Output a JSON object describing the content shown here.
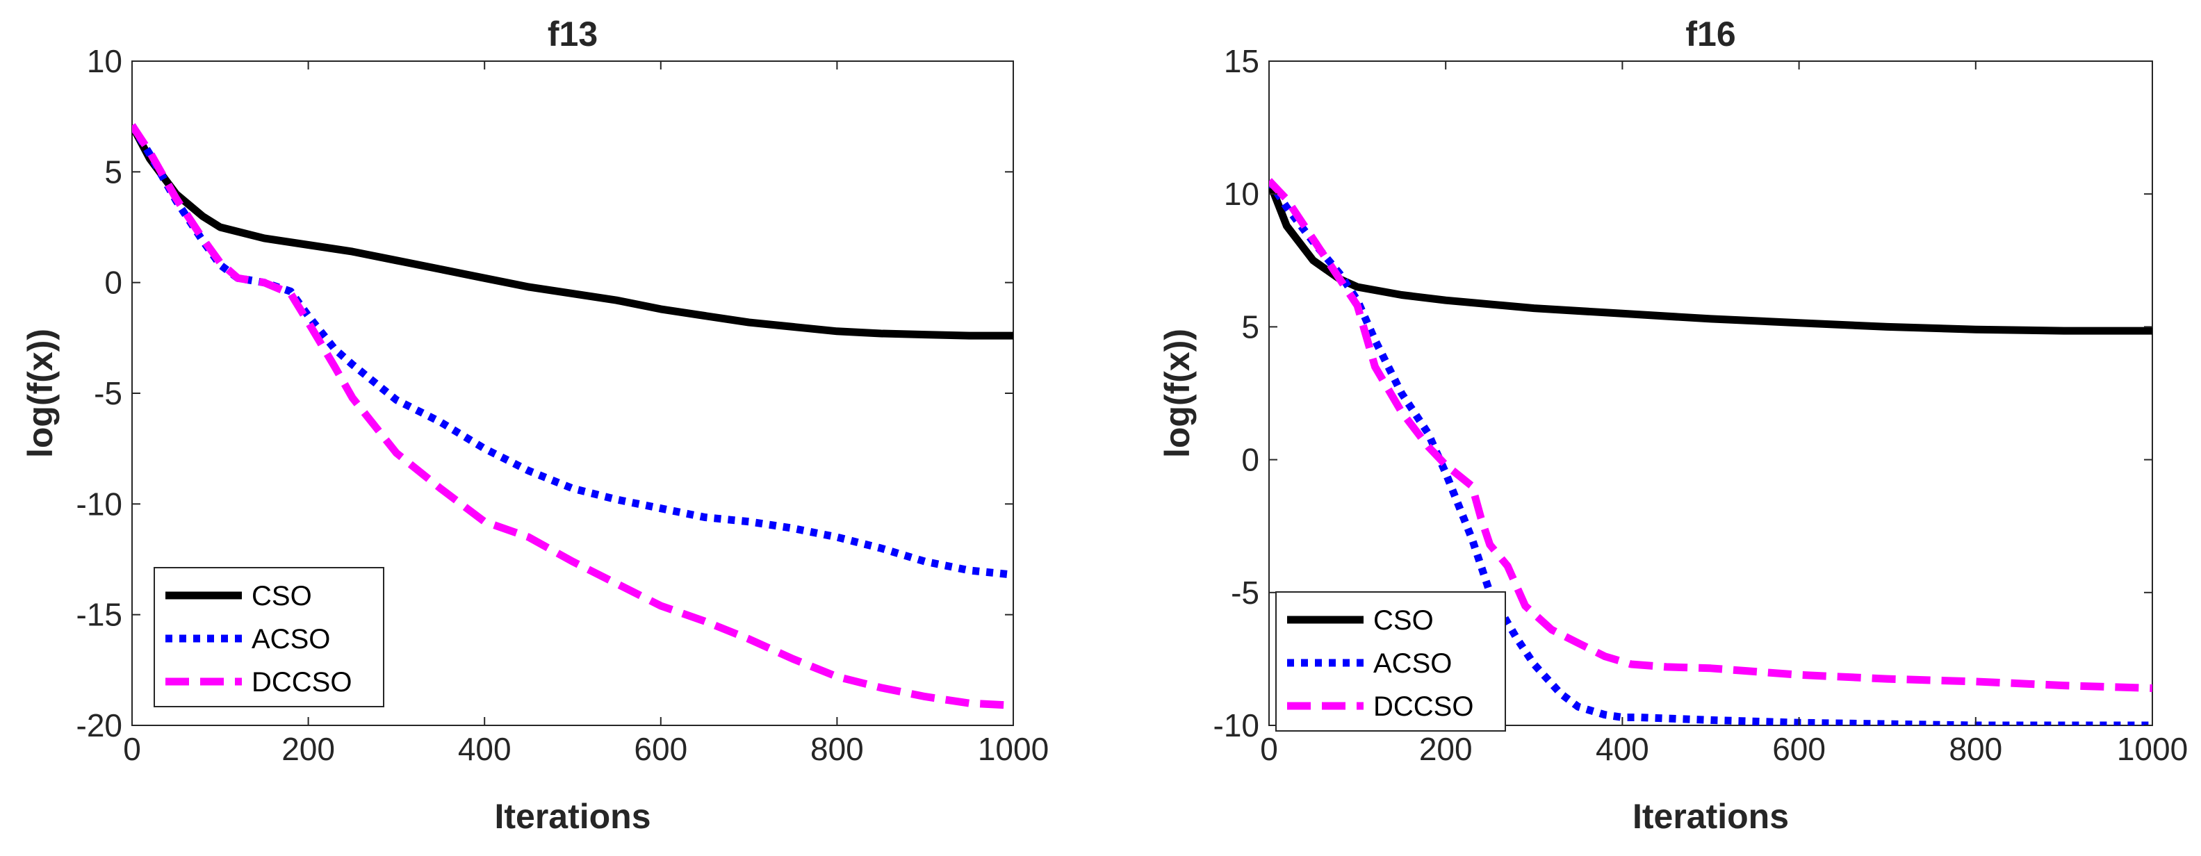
{
  "chart_data": [
    {
      "type": "line",
      "title": "f13",
      "xlabel": "Iterations",
      "ylabel": "log(f(x))",
      "xlim": [
        0,
        1000
      ],
      "ylim": [
        -20,
        10
      ],
      "xticks": [
        0,
        200,
        400,
        600,
        800,
        1000
      ],
      "yticks": [
        10,
        5,
        0,
        -5,
        -10,
        -15,
        -20
      ],
      "xtick_labels": [
        "0",
        "200",
        "400",
        "600",
        "800",
        "1000"
      ],
      "ytick_labels": [
        "10",
        "5",
        "0",
        "-5",
        "-10",
        "-15",
        "-20"
      ],
      "grid": false,
      "legend_position": "bottom-left",
      "series": [
        {
          "name": "CSO",
          "color": "#000000",
          "style": "solid",
          "x": [
            0,
            20,
            50,
            80,
            100,
            150,
            200,
            250,
            300,
            350,
            400,
            450,
            500,
            550,
            600,
            650,
            700,
            750,
            800,
            850,
            900,
            950,
            1000
          ],
          "y": [
            7.1,
            5.6,
            4.0,
            3.0,
            2.5,
            2.0,
            1.7,
            1.4,
            1.0,
            0.6,
            0.2,
            -0.2,
            -0.5,
            -0.8,
            -1.2,
            -1.5,
            -1.8,
            -2.0,
            -2.2,
            -2.3,
            -2.35,
            -2.4,
            -2.4
          ]
        },
        {
          "name": "ACSO",
          "color": "#0000ff",
          "style": "dotted",
          "x": [
            0,
            20,
            50,
            80,
            100,
            120,
            150,
            180,
            200,
            230,
            250,
            300,
            350,
            400,
            450,
            500,
            550,
            600,
            650,
            700,
            750,
            800,
            850,
            900,
            950,
            1000
          ],
          "y": [
            7.1,
            5.8,
            3.7,
            1.9,
            0.8,
            0.2,
            0.0,
            -0.4,
            -1.5,
            -3.0,
            -3.7,
            -5.3,
            -6.3,
            -7.5,
            -8.5,
            -9.3,
            -9.8,
            -10.2,
            -10.6,
            -10.8,
            -11.1,
            -11.5,
            -12.0,
            -12.6,
            -13.0,
            -13.2
          ]
        },
        {
          "name": "DCCSO",
          "color": "#ff00ff",
          "style": "dashed",
          "x": [
            0,
            20,
            50,
            80,
            100,
            120,
            150,
            180,
            200,
            230,
            250,
            300,
            350,
            400,
            450,
            500,
            550,
            600,
            650,
            700,
            750,
            800,
            850,
            900,
            950,
            1000
          ],
          "y": [
            7.1,
            5.9,
            3.8,
            2.0,
            0.9,
            0.2,
            0.0,
            -0.5,
            -1.8,
            -3.8,
            -5.2,
            -7.7,
            -9.3,
            -10.8,
            -11.5,
            -12.6,
            -13.6,
            -14.6,
            -15.3,
            -16.1,
            -17.0,
            -17.8,
            -18.3,
            -18.7,
            -19.0,
            -19.1
          ]
        }
      ],
      "legend": [
        "CSO",
        "ACSO",
        "DCCSO"
      ]
    },
    {
      "type": "line",
      "title": "f16",
      "xlabel": "Iterations",
      "ylabel": "log(f(x))",
      "xlim": [
        0,
        1000
      ],
      "ylim": [
        -10,
        15
      ],
      "xticks": [
        0,
        200,
        400,
        600,
        800,
        1000
      ],
      "yticks": [
        15,
        10,
        5,
        0,
        -5,
        -10
      ],
      "xtick_labels": [
        "0",
        "200",
        "400",
        "600",
        "800",
        "1000"
      ],
      "ytick_labels": [
        "15",
        "10",
        "5",
        "0",
        "-5",
        "-10"
      ],
      "grid": false,
      "legend_position": "bottom-left",
      "series": [
        {
          "name": "CSO",
          "color": "#000000",
          "style": "solid",
          "x": [
            0,
            20,
            50,
            80,
            100,
            150,
            200,
            300,
            400,
            500,
            600,
            700,
            800,
            900,
            1000
          ],
          "y": [
            10.5,
            8.8,
            7.5,
            6.8,
            6.5,
            6.2,
            6.0,
            5.7,
            5.5,
            5.3,
            5.15,
            5.0,
            4.9,
            4.85,
            4.85
          ]
        },
        {
          "name": "ACSO",
          "color": "#0000ff",
          "style": "dotted",
          "x": [
            0,
            20,
            50,
            80,
            100,
            120,
            150,
            180,
            200,
            230,
            250,
            280,
            300,
            330,
            350,
            380,
            400,
            420,
            500,
            600,
            700,
            800,
            1000
          ],
          "y": [
            10.5,
            9.5,
            8.2,
            7.0,
            6.0,
            4.5,
            2.5,
            1.0,
            -0.5,
            -3.0,
            -5.0,
            -6.7,
            -7.7,
            -8.8,
            -9.3,
            -9.6,
            -9.7,
            -9.7,
            -9.8,
            -9.9,
            -9.95,
            -10.0,
            -10.0
          ]
        },
        {
          "name": "DCCSO",
          "color": "#ff00ff",
          "style": "dashed",
          "x": [
            0,
            20,
            50,
            80,
            100,
            120,
            150,
            180,
            200,
            230,
            240,
            250,
            270,
            290,
            320,
            350,
            380,
            410,
            450,
            500,
            600,
            700,
            800,
            900,
            1000
          ],
          "y": [
            10.5,
            9.8,
            8.3,
            6.8,
            5.8,
            3.5,
            1.8,
            0.5,
            -0.2,
            -1.0,
            -2.2,
            -3.2,
            -4.0,
            -5.5,
            -6.4,
            -6.9,
            -7.4,
            -7.7,
            -7.8,
            -7.85,
            -8.1,
            -8.25,
            -8.35,
            -8.5,
            -8.6
          ]
        }
      ],
      "legend": [
        "CSO",
        "ACSO",
        "DCCSO"
      ]
    }
  ]
}
